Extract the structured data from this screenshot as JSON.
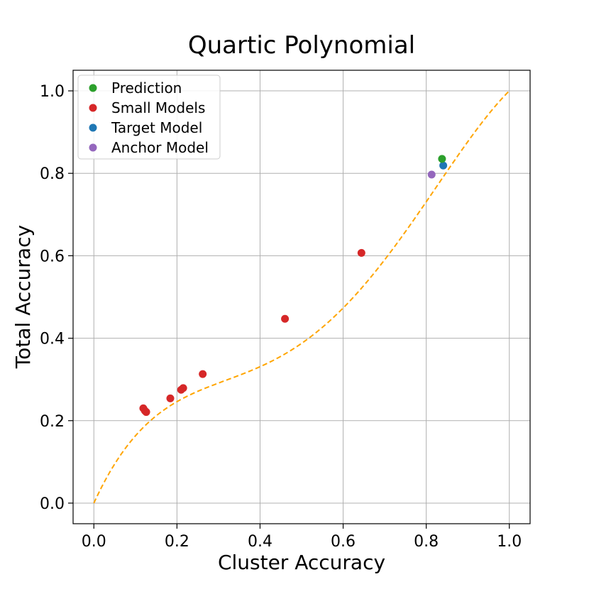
{
  "chart_data": {
    "type": "scatter",
    "title": "Quartic Polynomial",
    "xlabel": "Cluster Accuracy",
    "ylabel": "Total Accuracy",
    "xlim": [
      -0.05,
      1.05
    ],
    "ylim": [
      -0.05,
      1.05
    ],
    "grid": true,
    "legend_position": "top-left",
    "x_ticks": [
      {
        "value": 0.0,
        "label": "0.0"
      },
      {
        "value": 0.2,
        "label": "0.2"
      },
      {
        "value": 0.4,
        "label": "0.4"
      },
      {
        "value": 0.6,
        "label": "0.6"
      },
      {
        "value": 0.8,
        "label": "0.8"
      },
      {
        "value": 1.0,
        "label": "1.0"
      }
    ],
    "y_ticks": [
      {
        "value": 0.0,
        "label": "0.0"
      },
      {
        "value": 0.2,
        "label": "0.2"
      },
      {
        "value": 0.4,
        "label": "0.4"
      },
      {
        "value": 0.6,
        "label": "0.6"
      },
      {
        "value": 0.8,
        "label": "0.8"
      },
      {
        "value": 1.0,
        "label": "1.0"
      }
    ],
    "fit_curve": {
      "name": "Quartic fit",
      "style": "dashed",
      "color": "#ffa500",
      "coefficients_ascending": [
        0,
        2.2,
        -6.6,
        9.6,
        -4.2
      ],
      "x_range": [
        0,
        1
      ]
    },
    "series": [
      {
        "name": "Prediction",
        "color": "#2ca02c",
        "points": [
          {
            "x": 0.838,
            "y": 0.835
          }
        ]
      },
      {
        "name": "Small Models",
        "color": "#d62728",
        "points": [
          {
            "x": 0.119,
            "y": 0.23
          },
          {
            "x": 0.123,
            "y": 0.224
          },
          {
            "x": 0.126,
            "y": 0.221
          },
          {
            "x": 0.184,
            "y": 0.254
          },
          {
            "x": 0.21,
            "y": 0.275
          },
          {
            "x": 0.215,
            "y": 0.279
          },
          {
            "x": 0.262,
            "y": 0.313
          },
          {
            "x": 0.46,
            "y": 0.447
          },
          {
            "x": 0.644,
            "y": 0.607
          }
        ]
      },
      {
        "name": "Target Model",
        "color": "#1f77b4",
        "points": [
          {
            "x": 0.841,
            "y": 0.819
          }
        ]
      },
      {
        "name": "Anchor Model",
        "color": "#9467bd",
        "points": [
          {
            "x": 0.813,
            "y": 0.797
          }
        ]
      }
    ]
  }
}
